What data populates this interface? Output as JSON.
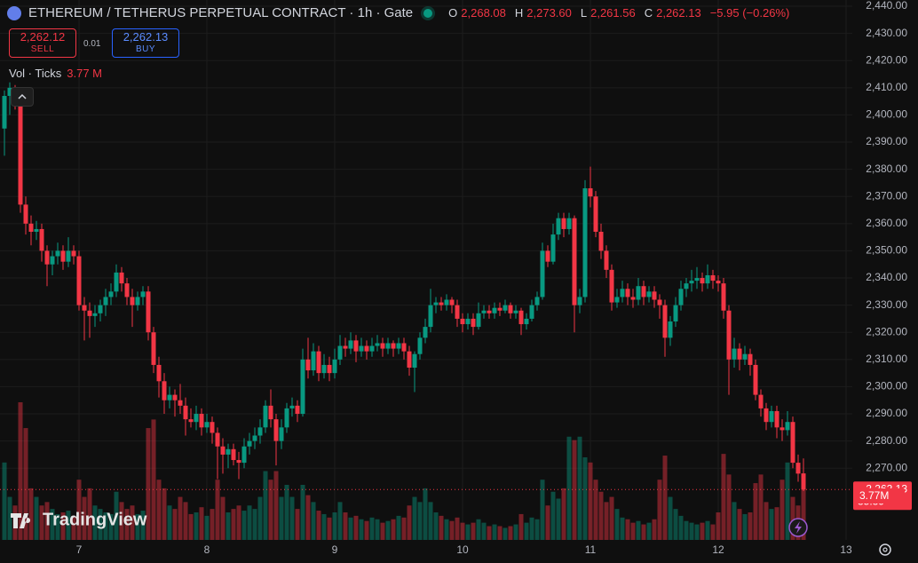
{
  "chart_data": {
    "type": "candlestick",
    "header": {
      "title": "ETHEREUM / TETHERUS PERPETUAL CONTRACT · 1h · Gate",
      "o_key": "O",
      "open": "2,268.08",
      "h_key": "H",
      "high": "2,273.60",
      "l_key": "L",
      "low": "2,261.56",
      "c_key": "C",
      "close": "2,262.13",
      "change": "−5.95 (−0.26%)"
    },
    "trade": {
      "sell_price": "2,262.12",
      "sell": "SELL",
      "quantity": "0.01",
      "buy_price": "2,262.13",
      "buy": "BUY"
    },
    "volume_header": {
      "label": "Vol · Ticks",
      "value": "3.77 M"
    },
    "watermark": "TradingView",
    "up_color": "#089981",
    "down_color": "#f23645",
    "grid": true,
    "ylim": [
      2243.6,
      2442.3
    ],
    "yticks": [
      {
        "value": 2440,
        "label": "2,440.00"
      },
      {
        "value": 2430,
        "label": "2,430.00"
      },
      {
        "value": 2420,
        "label": "2,420.00"
      },
      {
        "value": 2410,
        "label": "2,410.00"
      },
      {
        "value": 2400,
        "label": "2,400.00"
      },
      {
        "value": 2390,
        "label": "2,390.00"
      },
      {
        "value": 2380,
        "label": "2,380.00"
      },
      {
        "value": 2370,
        "label": "2,370.00"
      },
      {
        "value": 2360,
        "label": "2,360.00"
      },
      {
        "value": 2350,
        "label": "2,350.00"
      },
      {
        "value": 2340,
        "label": "2,340.00"
      },
      {
        "value": 2330,
        "label": "2,330.00"
      },
      {
        "value": 2320,
        "label": "2,320.00"
      },
      {
        "value": 2310,
        "label": "2,310.00"
      },
      {
        "value": 2300,
        "label": "2,300.00"
      },
      {
        "value": 2290,
        "label": "2,290.00"
      },
      {
        "value": 2280,
        "label": "2,280.00"
      },
      {
        "value": 2270,
        "label": "2,270.00"
      }
    ],
    "xticks": [
      {
        "value": 14,
        "label": "7"
      },
      {
        "value": 38,
        "label": "8"
      },
      {
        "value": 62,
        "label": "9"
      },
      {
        "value": 86,
        "label": "10"
      },
      {
        "value": 110,
        "label": "11"
      },
      {
        "value": 134,
        "label": "12"
      },
      {
        "value": 158,
        "label": "13"
      }
    ],
    "price_tag": {
      "value": 2262.13,
      "label": "2,262.13",
      "countdown": "35:39"
    },
    "ohlc": [
      [
        2395,
        2409,
        2385,
        2407
      ],
      [
        2407,
        2412,
        2400,
        2410
      ],
      [
        2408,
        2411,
        2402,
        2405
      ],
      [
        2405,
        2407,
        2364,
        2367
      ],
      [
        2367,
        2370,
        2356,
        2360
      ],
      [
        2360,
        2363,
        2352,
        2357
      ],
      [
        2357,
        2361,
        2354,
        2358
      ],
      [
        2358,
        2360,
        2346,
        2350
      ],
      [
        2350,
        2352,
        2337,
        2345
      ],
      [
        2345,
        2350,
        2341,
        2348
      ],
      [
        2348,
        2353,
        2345,
        2350
      ],
      [
        2350,
        2352,
        2343,
        2346
      ],
      [
        2346,
        2355,
        2344,
        2350
      ],
      [
        2350,
        2352,
        2345,
        2348
      ],
      [
        2348,
        2350,
        2328,
        2330
      ],
      [
        2330,
        2333,
        2317,
        2328
      ],
      [
        2328,
        2331,
        2318,
        2326
      ],
      [
        2326,
        2330,
        2322,
        2327
      ],
      [
        2327,
        2332,
        2324,
        2330
      ],
      [
        2330,
        2336,
        2326,
        2333
      ],
      [
        2333,
        2338,
        2330,
        2335
      ],
      [
        2335,
        2345,
        2333,
        2342
      ],
      [
        2342,
        2344,
        2335,
        2338
      ],
      [
        2338,
        2340,
        2330,
        2333
      ],
      [
        2333,
        2336,
        2322,
        2330
      ],
      [
        2330,
        2335,
        2328,
        2333
      ],
      [
        2333,
        2337,
        2330,
        2335
      ],
      [
        2335,
        2337,
        2317,
        2320
      ],
      [
        2320,
        2322,
        2305,
        2308
      ],
      [
        2308,
        2311,
        2296,
        2302
      ],
      [
        2302,
        2305,
        2290,
        2295
      ],
      [
        2295,
        2300,
        2292,
        2297
      ],
      [
        2297,
        2299,
        2289,
        2295
      ],
      [
        2295,
        2301,
        2290,
        2293
      ],
      [
        2293,
        2296,
        2282,
        2288
      ],
      [
        2288,
        2292,
        2285,
        2287
      ],
      [
        2287,
        2293,
        2284,
        2290
      ],
      [
        2290,
        2292,
        2282,
        2285
      ],
      [
        2285,
        2290,
        2283,
        2287
      ],
      [
        2287,
        2289,
        2279,
        2283
      ],
      [
        2283,
        2285,
        2266,
        2278
      ],
      [
        2278,
        2281,
        2268,
        2275
      ],
      [
        2275,
        2279,
        2270,
        2277
      ],
      [
        2277,
        2279,
        2271,
        2273
      ],
      [
        2273,
        2276,
        2266,
        2272
      ],
      [
        2272,
        2281,
        2270,
        2278
      ],
      [
        2278,
        2283,
        2275,
        2280
      ],
      [
        2280,
        2285,
        2277,
        2282
      ],
      [
        2282,
        2288,
        2279,
        2285
      ],
      [
        2285,
        2295,
        2283,
        2293
      ],
      [
        2293,
        2299,
        2285,
        2288
      ],
      [
        2288,
        2290,
        2271,
        2280
      ],
      [
        2280,
        2288,
        2277,
        2285
      ],
      [
        2285,
        2294,
        2283,
        2292
      ],
      [
        2292,
        2296,
        2289,
        2293
      ],
      [
        2293,
        2295,
        2287,
        2290
      ],
      [
        2290,
        2314,
        2289,
        2310
      ],
      [
        2310,
        2318,
        2303,
        2306
      ],
      [
        2306,
        2316,
        2304,
        2313
      ],
      [
        2313,
        2315,
        2302,
        2305
      ],
      [
        2305,
        2312,
        2303,
        2308
      ],
      [
        2308,
        2311,
        2302,
        2305
      ],
      [
        2305,
        2314,
        2303,
        2310
      ],
      [
        2310,
        2319,
        2308,
        2315
      ],
      [
        2315,
        2318,
        2311,
        2314
      ],
      [
        2314,
        2320,
        2312,
        2317
      ],
      [
        2317,
        2319,
        2309,
        2313
      ],
      [
        2313,
        2318,
        2311,
        2315
      ],
      [
        2315,
        2317,
        2310,
        2313
      ],
      [
        2313,
        2318,
        2311,
        2315
      ],
      [
        2315,
        2319,
        2313,
        2316
      ],
      [
        2316,
        2318,
        2311,
        2314
      ],
      [
        2314,
        2318,
        2312,
        2316
      ],
      [
        2316,
        2317,
        2311,
        2314
      ],
      [
        2314,
        2318,
        2312,
        2316
      ],
      [
        2316,
        2318,
        2310,
        2313
      ],
      [
        2313,
        2315,
        2304,
        2307
      ],
      [
        2307,
        2313,
        2298,
        2312
      ],
      [
        2312,
        2320,
        2310,
        2318
      ],
      [
        2318,
        2325,
        2316,
        2322
      ],
      [
        2322,
        2336,
        2320,
        2330
      ],
      [
        2330,
        2333,
        2327,
        2331
      ],
      [
        2331,
        2333,
        2328,
        2330
      ],
      [
        2330,
        2334,
        2328,
        2332
      ],
      [
        2332,
        2333,
        2327,
        2330
      ],
      [
        2330,
        2332,
        2322,
        2325
      ],
      [
        2325,
        2327,
        2320,
        2323
      ],
      [
        2323,
        2327,
        2321,
        2325
      ],
      [
        2325,
        2327,
        2319,
        2322
      ],
      [
        2322,
        2331,
        2321,
        2327
      ],
      [
        2327,
        2330,
        2325,
        2328
      ],
      [
        2328,
        2330,
        2325,
        2327
      ],
      [
        2327,
        2331,
        2325,
        2329
      ],
      [
        2329,
        2331,
        2326,
        2328
      ],
      [
        2328,
        2332,
        2327,
        2330
      ],
      [
        2330,
        2331,
        2325,
        2327
      ],
      [
        2327,
        2330,
        2325,
        2328
      ],
      [
        2328,
        2329,
        2319,
        2323
      ],
      [
        2323,
        2327,
        2321,
        2325
      ],
      [
        2325,
        2332,
        2324,
        2330
      ],
      [
        2330,
        2335,
        2328,
        2333
      ],
      [
        2333,
        2353,
        2332,
        2350
      ],
      [
        2350,
        2352,
        2344,
        2346
      ],
      [
        2346,
        2360,
        2345,
        2356
      ],
      [
        2356,
        2364,
        2354,
        2362
      ],
      [
        2362,
        2364,
        2355,
        2358
      ],
      [
        2358,
        2364,
        2356,
        2362
      ],
      [
        2362,
        2363,
        2320,
        2330
      ],
      [
        2330,
        2336,
        2327,
        2333
      ],
      [
        2333,
        2376,
        2331,
        2373
      ],
      [
        2373,
        2381,
        2366,
        2370
      ],
      [
        2370,
        2372,
        2355,
        2357
      ],
      [
        2357,
        2360,
        2347,
        2350
      ],
      [
        2350,
        2352,
        2340,
        2343
      ],
      [
        2343,
        2345,
        2328,
        2331
      ],
      [
        2331,
        2336,
        2329,
        2333
      ],
      [
        2333,
        2339,
        2331,
        2336
      ],
      [
        2336,
        2338,
        2330,
        2333
      ],
      [
        2333,
        2336,
        2329,
        2332
      ],
      [
        2332,
        2340,
        2330,
        2337
      ],
      [
        2337,
        2339,
        2330,
        2333
      ],
      [
        2333,
        2337,
        2331,
        2335
      ],
      [
        2335,
        2337,
        2329,
        2332
      ],
      [
        2332,
        2334,
        2325,
        2330
      ],
      [
        2330,
        2332,
        2311,
        2318
      ],
      [
        2318,
        2326,
        2315,
        2324
      ],
      [
        2324,
        2333,
        2322,
        2330
      ],
      [
        2330,
        2339,
        2328,
        2336
      ],
      [
        2336,
        2340,
        2333,
        2338
      ],
      [
        2338,
        2343,
        2335,
        2339
      ],
      [
        2339,
        2344,
        2336,
        2340
      ],
      [
        2340,
        2342,
        2335,
        2338
      ],
      [
        2338,
        2345,
        2336,
        2341
      ],
      [
        2341,
        2343,
        2336,
        2339
      ],
      [
        2339,
        2341,
        2335,
        2338
      ],
      [
        2338,
        2340,
        2325,
        2328
      ],
      [
        2328,
        2330,
        2297,
        2310
      ],
      [
        2310,
        2318,
        2307,
        2314
      ],
      [
        2314,
        2316,
        2306,
        2310
      ],
      [
        2310,
        2315,
        2308,
        2312
      ],
      [
        2312,
        2314,
        2304,
        2308
      ],
      [
        2308,
        2310,
        2295,
        2297
      ],
      [
        2297,
        2299,
        2289,
        2292
      ],
      [
        2292,
        2294,
        2284,
        2287
      ],
      [
        2287,
        2293,
        2285,
        2291
      ],
      [
        2291,
        2293,
        2281,
        2285
      ],
      [
        2285,
        2288,
        2280,
        2284
      ],
      [
        2284,
        2291,
        2282,
        2287
      ],
      [
        2287,
        2289,
        2270,
        2272
      ],
      [
        2272,
        2275,
        2265,
        2268
      ],
      [
        2268.08,
        2273.6,
        2261.56,
        2262.13
      ]
    ],
    "volume": {
      "values": [
        4.5,
        2.5,
        2.0,
        8.0,
        6.5,
        3.0,
        2.5,
        2.0,
        2.2,
        1.8,
        1.5,
        1.6,
        1.7,
        1.4,
        3.5,
        2.5,
        3.0,
        2.0,
        1.8,
        1.6,
        1.5,
        2.8,
        2.2,
        1.8,
        2.0,
        1.5,
        1.7,
        6.5,
        7.0,
        3.5,
        3.0,
        2.0,
        1.8,
        2.5,
        2.2,
        1.5,
        1.6,
        1.9,
        1.4,
        1.8,
        3.5,
        2.5,
        1.6,
        1.8,
        2.0,
        1.7,
        2.0,
        1.8,
        2.5,
        4.0,
        3.5,
        4.0,
        2.5,
        3.2,
        2.5,
        1.8,
        3.2,
        2.6,
        2.2,
        1.7,
        1.5,
        1.3,
        1.6,
        2.2,
        1.6,
        1.3,
        1.4,
        1.2,
        1.1,
        1.3,
        1.2,
        1.0,
        1.1,
        1.2,
        1.4,
        1.3,
        2.0,
        2.5,
        2.2,
        3.0,
        2.2,
        1.6,
        1.4,
        1.2,
        1.1,
        1.3,
        1.0,
        0.9,
        1.0,
        1.2,
        1.0,
        0.8,
        0.9,
        0.8,
        0.7,
        0.8,
        0.9,
        1.5,
        1.0,
        1.3,
        1.2,
        3.5,
        2.0,
        2.8,
        2.4,
        3.0,
        6.0,
        5.8,
        6.0,
        4.8,
        4.5,
        3.5,
        2.8,
        2.2,
        2.5,
        1.8,
        1.3,
        1.2,
        1.0,
        1.1,
        0.9,
        1.0,
        1.2,
        3.5,
        4.9,
        2.5,
        1.8,
        1.4,
        1.1,
        1.0,
        0.9,
        1.0,
        1.1,
        0.9,
        1.6,
        5.0,
        3.8,
        2.2,
        1.8,
        1.5,
        1.6,
        3.3,
        3.8,
        2.2,
        1.8,
        1.9,
        3.5,
        4.5,
        2.5,
        2.0,
        3.77
      ],
      "last_label": "3.77M"
    }
  }
}
